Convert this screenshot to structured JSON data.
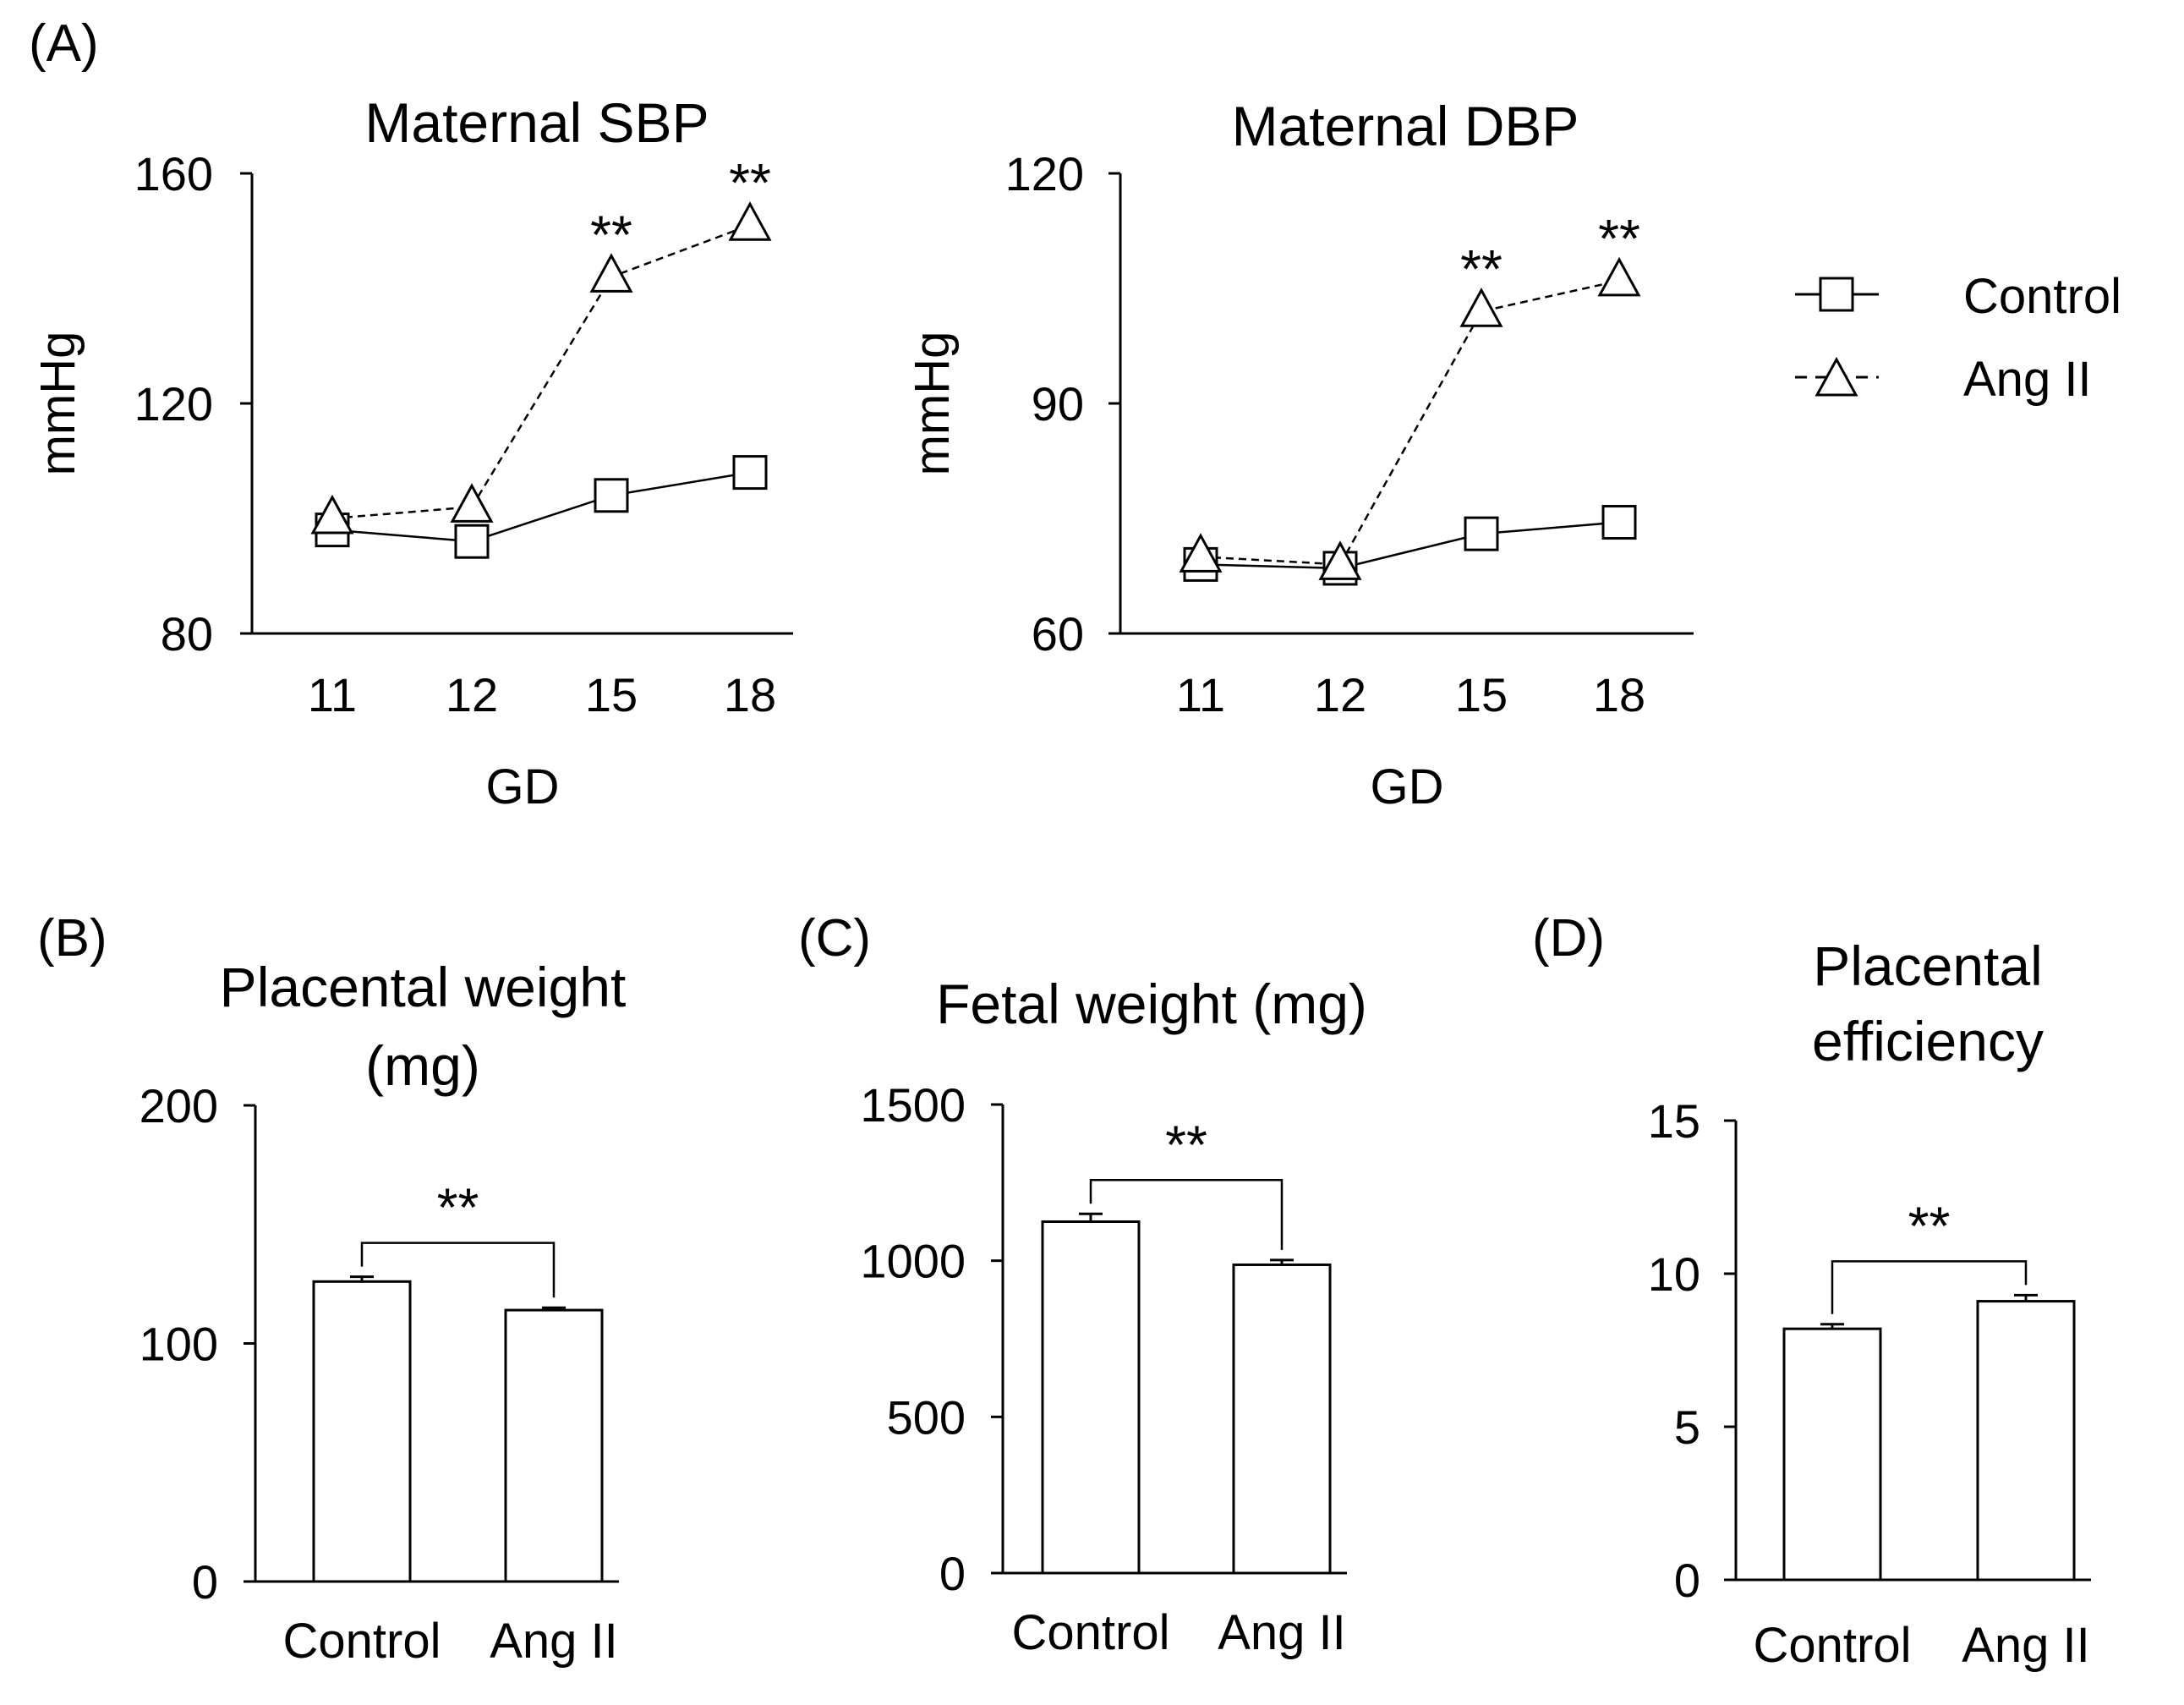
{
  "chart_data": [
    {
      "panel": "(A)",
      "type": "line",
      "title": "Maternal SBP",
      "xlabel": "GD",
      "ylabel": "mmHg",
      "categories": [
        "11",
        "12",
        "15",
        "18"
      ],
      "ylim": [
        80,
        160
      ],
      "yticks": [
        "80",
        "120",
        "160"
      ],
      "series": [
        {
          "name": "Control",
          "marker": "square",
          "line": "solid",
          "values": [
            98,
            96,
            104,
            108
          ]
        },
        {
          "name": "Ang II",
          "marker": "triangle",
          "line": "dashed",
          "values": [
            100,
            102,
            142,
            151
          ]
        }
      ],
      "annotations": [
        {
          "text": "**",
          "category": "15"
        },
        {
          "text": "**",
          "category": "18"
        }
      ]
    },
    {
      "panel": "",
      "type": "line",
      "title": "Maternal DBP",
      "xlabel": "GD",
      "ylabel": "mmHg",
      "categories": [
        "11",
        "12",
        "15",
        "18"
      ],
      "ylim": [
        60,
        120
      ],
      "yticks": [
        "60",
        "90",
        "120"
      ],
      "series": [
        {
          "name": "Control",
          "marker": "square",
          "line": "solid",
          "values": [
            69,
            68.5,
            73,
            74.5
          ]
        },
        {
          "name": "Ang II",
          "marker": "triangle",
          "line": "dashed",
          "values": [
            70,
            69,
            102,
            106
          ]
        }
      ],
      "annotations": [
        {
          "text": "**",
          "category": "15"
        },
        {
          "text": "**",
          "category": "18"
        }
      ]
    },
    {
      "panel": "(B)",
      "type": "bar",
      "title": "Placental weight (mg)",
      "title_lines": [
        "Placental weight",
        "(mg)"
      ],
      "categories": [
        "Control",
        "Ang II"
      ],
      "values": [
        126,
        114
      ],
      "errors": [
        2,
        1
      ],
      "ylim": [
        0,
        200
      ],
      "yticks": [
        "0",
        "100",
        "200"
      ],
      "significance": "**"
    },
    {
      "panel": "(C)",
      "type": "bar",
      "title": "Fetal weight (mg)",
      "title_lines": [
        "Fetal weight (mg)"
      ],
      "categories": [
        "Control",
        "Ang II"
      ],
      "values": [
        1125,
        987
      ],
      "errors": [
        25,
        15
      ],
      "ylim": [
        0,
        1500
      ],
      "yticks": [
        "0",
        "500",
        "1000",
        "1500"
      ],
      "significance": "**"
    },
    {
      "panel": "(D)",
      "type": "bar",
      "title": "Placental efficiency",
      "title_lines": [
        "Placental",
        "efficiency"
      ],
      "categories": [
        "Control",
        "Ang II"
      ],
      "values": [
        8.2,
        9.1
      ],
      "errors": [
        0.15,
        0.2
      ],
      "ylim": [
        0,
        15
      ],
      "yticks": [
        "0",
        "5",
        "10",
        "15"
      ],
      "significance": "**"
    }
  ],
  "legend": {
    "placement": "right",
    "items": [
      {
        "label": "Control",
        "marker": "square",
        "line": "solid"
      },
      {
        "label": "Ang II",
        "marker": "triangle",
        "line": "dashed"
      }
    ]
  }
}
